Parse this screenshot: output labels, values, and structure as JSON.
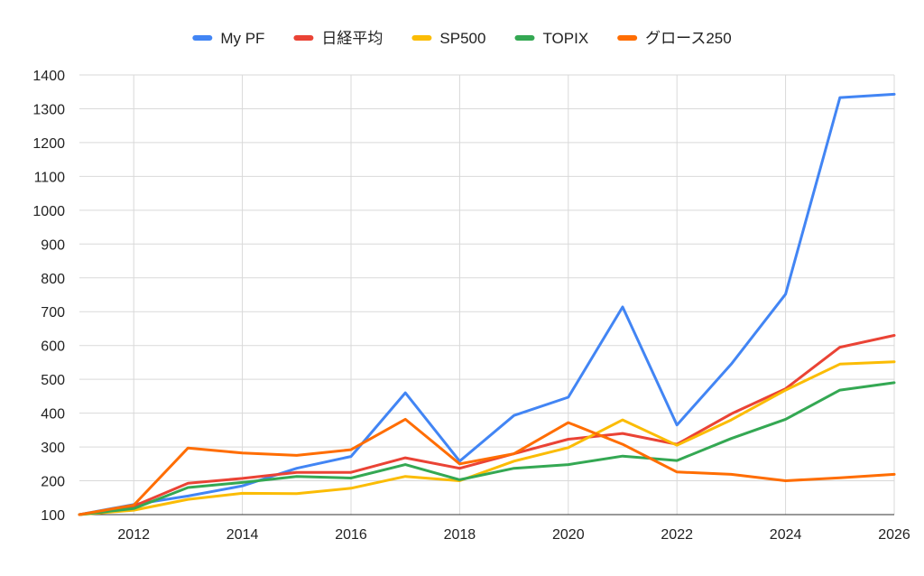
{
  "chart_data": {
    "type": "line",
    "x": [
      2011,
      2012,
      2013,
      2014,
      2015,
      2016,
      2017,
      2018,
      2019,
      2020,
      2021,
      2022,
      2023,
      2024,
      2025,
      2026
    ],
    "xlim": [
      2011,
      2026
    ],
    "ylim": [
      100,
      1400
    ],
    "xticks": [
      2012,
      2014,
      2016,
      2018,
      2020,
      2022,
      2024,
      2026
    ],
    "yticks": [
      100,
      200,
      300,
      400,
      500,
      600,
      700,
      800,
      900,
      1000,
      1100,
      1200,
      1300,
      1400
    ],
    "grid": true,
    "legend_position": "top",
    "series": [
      {
        "name": "My PF",
        "color": "#4285f4",
        "values": [
          100,
          130,
          155,
          185,
          237,
          272,
          460,
          258,
          393,
          447,
          714,
          365,
          545,
          752,
          1333,
          1343
        ]
      },
      {
        "name": "日経平均",
        "color": "#ea4335",
        "values": [
          100,
          125,
          193,
          207,
          225,
          225,
          268,
          237,
          280,
          323,
          340,
          308,
          398,
          472,
          595,
          630
        ]
      },
      {
        "name": "SP500",
        "color": "#fbbc04",
        "values": [
          100,
          113,
          145,
          163,
          162,
          178,
          213,
          200,
          258,
          298,
          380,
          305,
          380,
          468,
          545,
          552
        ]
      },
      {
        "name": "TOPIX",
        "color": "#34a853",
        "values": [
          100,
          118,
          180,
          195,
          213,
          208,
          248,
          203,
          237,
          248,
          273,
          260,
          325,
          382,
          468,
          490
        ]
      },
      {
        "name": "グロース250",
        "color": "#ff6d01",
        "values": [
          100,
          128,
          297,
          282,
          275,
          292,
          382,
          250,
          280,
          372,
          308,
          226,
          219,
          200,
          209,
          219
        ]
      }
    ]
  }
}
